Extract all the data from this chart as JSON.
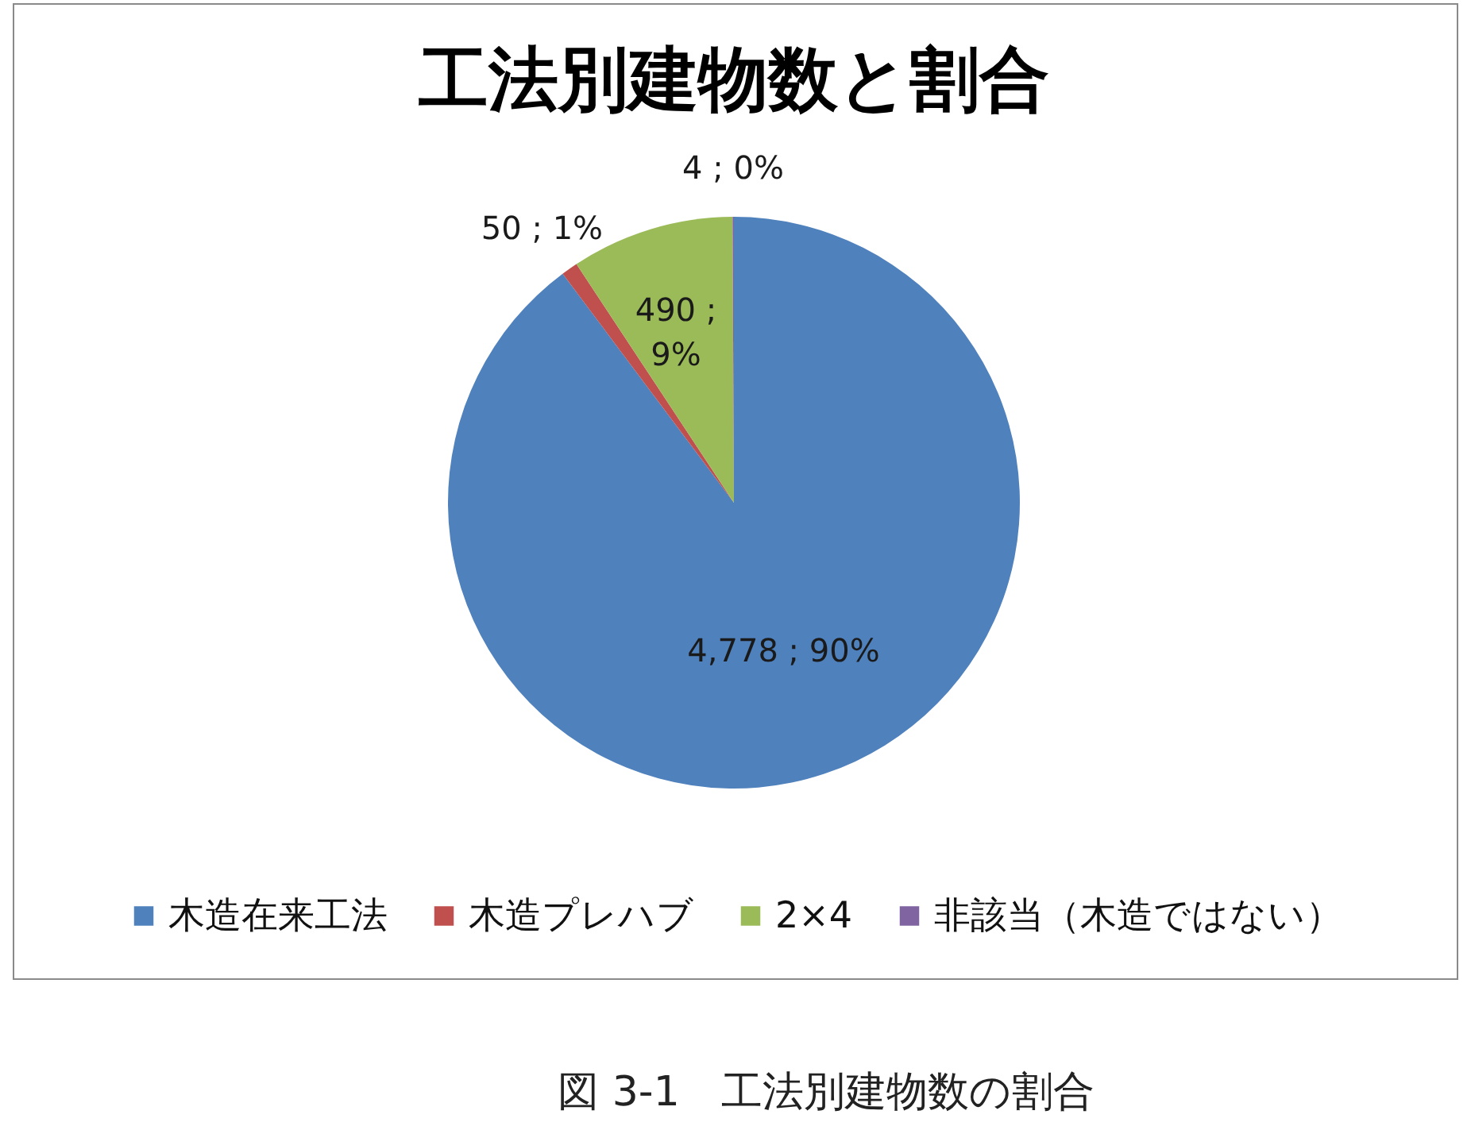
{
  "chart_data": {
    "type": "pie",
    "title": "工法別建物数と割合",
    "categories": [
      "木造在来工法",
      "木造プレハブ",
      "2×4",
      "非該当（木造ではない）"
    ],
    "values": [
      4778,
      50,
      490,
      4
    ],
    "colors": [
      "#4f81bd",
      "#c0504d",
      "#9bbb59",
      "#8064a2"
    ],
    "value_labels": [
      "4,778 ; 90%",
      "50 ; 1%",
      "490 ;\n9%",
      "4 ; 0%"
    ],
    "legend": "bottom",
    "annotations": [
      "図 3-1　工法別建物数の割合"
    ]
  }
}
